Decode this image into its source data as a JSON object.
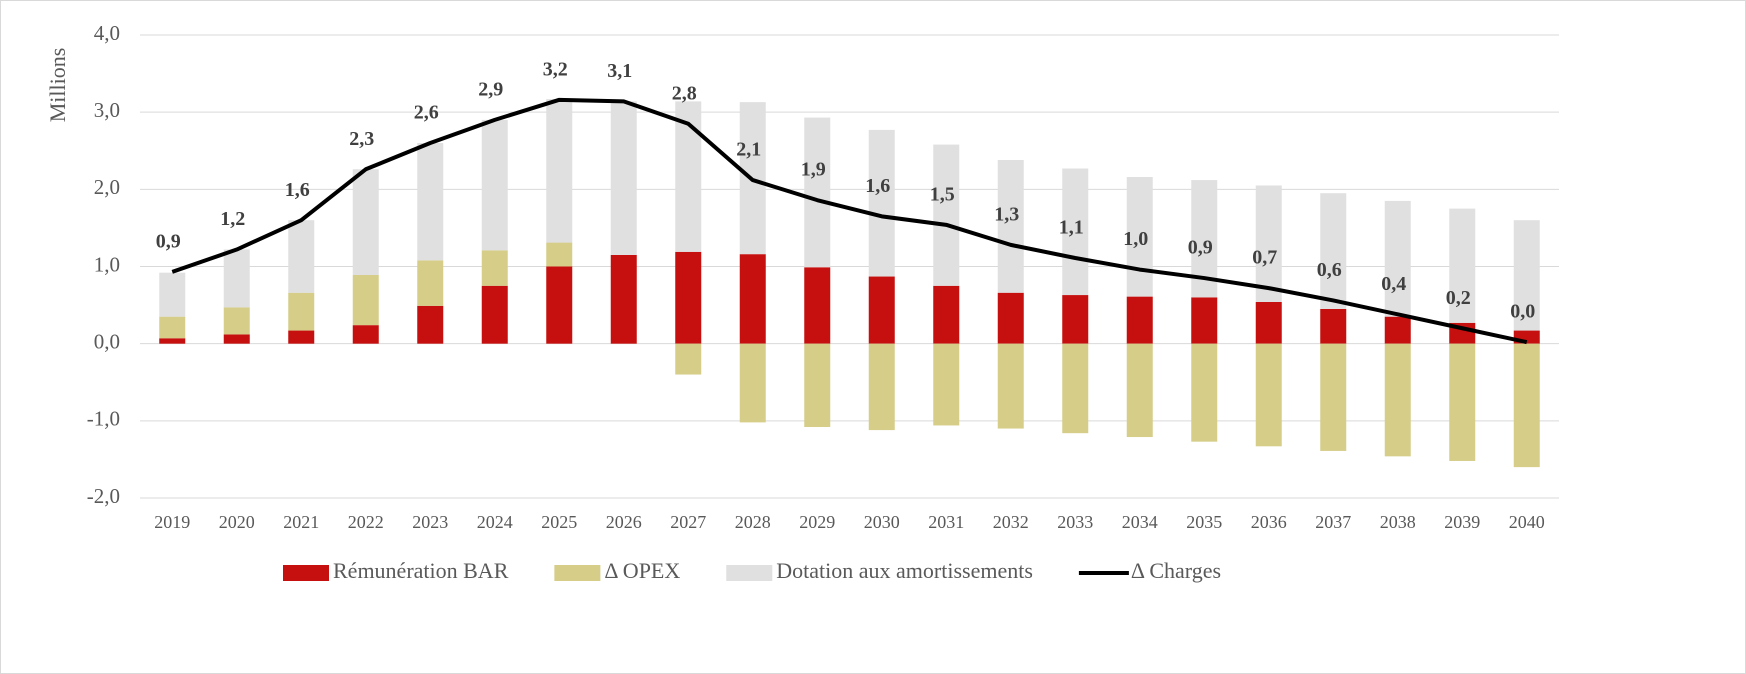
{
  "chart_data": {
    "type": "bar",
    "y_label": "Millions",
    "categories": [
      "2019",
      "2020",
      "2021",
      "2022",
      "2023",
      "2024",
      "2025",
      "2026",
      "2027",
      "2028",
      "2029",
      "2030",
      "2031",
      "2032",
      "2033",
      "2034",
      "2035",
      "2036",
      "2037",
      "2038",
      "2039",
      "2040"
    ],
    "series": [
      {
        "name": "Rémunération BAR",
        "color": "#c5100f",
        "values": [
          0.07,
          0.12,
          0.17,
          0.24,
          0.49,
          0.75,
          1.0,
          1.15,
          1.19,
          1.16,
          0.99,
          0.87,
          0.75,
          0.66,
          0.63,
          0.61,
          0.6,
          0.54,
          0.45,
          0.35,
          0.27,
          0.17
        ]
      },
      {
        "name": "Δ OPEX",
        "color": "#d5cd88",
        "values": [
          0.28,
          0.35,
          0.49,
          0.65,
          0.59,
          0.46,
          0.31,
          0,
          -0.4,
          -1.02,
          -1.08,
          -1.12,
          -1.06,
          -1.1,
          -1.16,
          -1.21,
          -1.27,
          -1.33,
          -1.39,
          -1.46,
          -1.52,
          -1.6
        ]
      },
      {
        "name": "Dotation aux amortissements",
        "color": "#e0e0e0",
        "values": [
          0.57,
          0.75,
          0.94,
          1.37,
          1.52,
          1.69,
          1.86,
          1.99,
          1.95,
          1.97,
          1.94,
          1.9,
          1.83,
          1.72,
          1.64,
          1.55,
          1.52,
          1.51,
          1.5,
          1.5,
          1.48,
          1.43
        ]
      },
      {
        "name": "Δ Charges",
        "type": "line",
        "color": "#000000",
        "values": [
          0.93,
          1.22,
          1.6,
          2.26,
          2.6,
          2.9,
          3.16,
          3.14,
          2.85,
          2.12,
          1.86,
          1.65,
          1.54,
          1.28,
          1.11,
          0.96,
          0.85,
          0.72,
          0.56,
          0.38,
          0.2,
          0.02
        ],
        "value_labels": [
          "0,9",
          "1,2",
          "1,6",
          "2,3",
          "2,6",
          "2,9",
          "3,2",
          "3,1",
          "2,8",
          "2,1",
          "1,9",
          "1,6",
          "1,5",
          "1,3",
          "1,1",
          "1,0",
          "0,9",
          "0,7",
          "0,6",
          "0,4",
          "0,2",
          "0,0"
        ]
      }
    ],
    "ylim": [
      -2,
      4
    ],
    "yticks": [
      {
        "value": -2,
        "label": "-2,0"
      },
      {
        "value": -1,
        "label": "-1,0"
      },
      {
        "value": 0,
        "label": "0,0"
      },
      {
        "value": 1,
        "label": "1,0"
      },
      {
        "value": 2,
        "label": "2,0"
      },
      {
        "value": 3,
        "label": "3,0"
      },
      {
        "value": 4,
        "label": "4,0"
      }
    ],
    "grid": true,
    "legend": "bottom"
  }
}
